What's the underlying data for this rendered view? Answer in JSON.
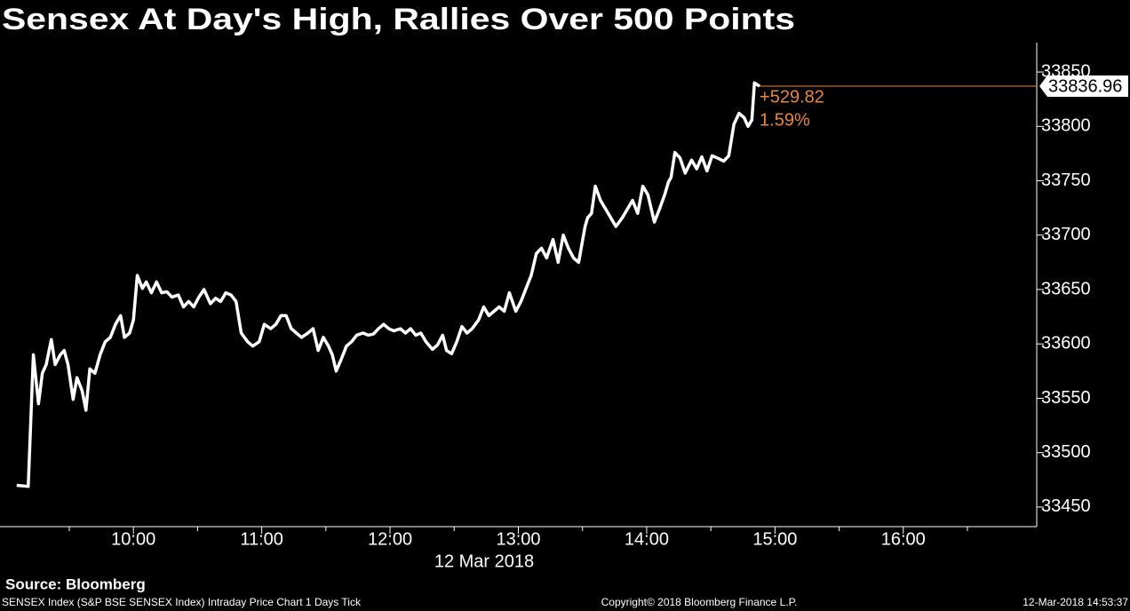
{
  "chart_data": {
    "type": "line",
    "title": "Sensex At Day's High, Rallies Over 500 Points",
    "xlabel": "12 Mar 2018",
    "source": "Source: Bloomberg",
    "footer_left": "SENSEX Index (S&P BSE SENSEX Index) Intraday Price Chart 1 Days  Tick",
    "footer_center": "Copyright© 2018 Bloomberg Finance L.P.",
    "footer_right": "12-Mar-2018 14:53:37",
    "change": "+529.82",
    "change_pct": "1.59%",
    "color": "#ffffff",
    "last_line_color": "#e8873a",
    "x": [
      9.09,
      9.18,
      9.22,
      9.26,
      9.29,
      9.32,
      9.36,
      9.39,
      9.43,
      9.46,
      9.49,
      9.53,
      9.56,
      9.6,
      9.63,
      9.66,
      9.7,
      9.74,
      9.78,
      9.82,
      9.86,
      9.9,
      9.93,
      9.97,
      10.0,
      10.03,
      10.07,
      10.1,
      10.14,
      10.18,
      10.22,
      10.26,
      10.3,
      10.35,
      10.39,
      10.43,
      10.47,
      10.51,
      10.55,
      10.6,
      10.64,
      10.68,
      10.72,
      10.76,
      10.8,
      10.84,
      10.89,
      10.93,
      10.98,
      11.02,
      11.07,
      11.11,
      11.15,
      11.19,
      11.23,
      11.27,
      11.31,
      11.36,
      11.4,
      11.44,
      11.48,
      11.52,
      11.55,
      11.58,
      11.62,
      11.66,
      11.7,
      11.74,
      11.79,
      11.83,
      11.87,
      11.91,
      11.95,
      11.99,
      12.03,
      12.08,
      12.12,
      12.16,
      12.2,
      12.24,
      12.28,
      12.33,
      12.37,
      12.41,
      12.44,
      12.48,
      12.52,
      12.56,
      12.6,
      12.64,
      12.69,
      12.73,
      12.77,
      12.81,
      12.85,
      12.89,
      12.93,
      12.98,
      13.02,
      13.06,
      13.1,
      13.14,
      13.18,
      13.22,
      13.27,
      13.31,
      13.35,
      13.39,
      13.43,
      13.47,
      13.52,
      13.54,
      13.57,
      13.6,
      13.64,
      13.68,
      13.72,
      13.76,
      13.81,
      13.85,
      13.89,
      13.93,
      13.97,
      14.01,
      14.06,
      14.1,
      14.14,
      14.17,
      14.19,
      14.22,
      14.26,
      14.3,
      14.35,
      14.39,
      14.43,
      14.47,
      14.51,
      14.55,
      14.6,
      14.64,
      14.68,
      14.72,
      14.76,
      14.79,
      14.82,
      14.84,
      14.88
    ],
    "values": [
      33470,
      33469,
      33590,
      33545,
      33573,
      33581,
      33604,
      33581,
      33590,
      33594,
      33581,
      33549,
      33569,
      33557,
      33539,
      33577,
      33573,
      33590,
      33602,
      33606,
      33618,
      33626,
      33606,
      33610,
      33622,
      33663,
      33651,
      33657,
      33647,
      33657,
      33647,
      33648,
      33643,
      33645,
      33634,
      33639,
      33634,
      33643,
      33650,
      33637,
      33642,
      33639,
      33647,
      33645,
      33639,
      33610,
      33602,
      33598,
      33602,
      33618,
      33614,
      33618,
      33626,
      33626,
      33614,
      33610,
      33606,
      33610,
      33614,
      33594,
      33606,
      33598,
      33590,
      33575,
      33586,
      33598,
      33602,
      33608,
      33610,
      33608,
      33609,
      33614,
      33618,
      33614,
      33612,
      33614,
      33610,
      33614,
      33608,
      33610,
      33602,
      33595,
      33599,
      33608,
      33594,
      33591,
      33602,
      33616,
      33610,
      33614,
      33622,
      33634,
      33626,
      33630,
      33634,
      33630,
      33647,
      33630,
      33639,
      33651,
      33663,
      33683,
      33688,
      33679,
      33696,
      33675,
      33700,
      33688,
      33679,
      33675,
      33708,
      33716,
      33720,
      33745,
      33732,
      33724,
      33716,
      33708,
      33716,
      33724,
      33732,
      33720,
      33745,
      33737,
      33712,
      33724,
      33737,
      33749,
      33753,
      33776,
      33771,
      33757,
      33769,
      33761,
      33772,
      33759,
      33773,
      33771,
      33768,
      33773,
      33802,
      33812,
      33808,
      33800,
      33806,
      33840,
      33836.96
    ],
    "xlim": [
      8.96,
      17.04
    ],
    "xticks": [
      {
        "value": 10,
        "label": "10:00"
      },
      {
        "value": 11,
        "label": "11:00"
      },
      {
        "value": 12,
        "label": "12:00"
      },
      {
        "value": 13,
        "label": "13:00"
      },
      {
        "value": 14,
        "label": "14:00"
      },
      {
        "value": 15,
        "label": "15:00"
      },
      {
        "value": 16,
        "label": "16:00"
      }
    ],
    "xminorticks": [
      9.5,
      10.5,
      11.5,
      12.5,
      13.5,
      14.5,
      15.5,
      16.5
    ],
    "ylim": [
      33432,
      33877
    ],
    "yticks": [
      33450,
      33500,
      33550,
      33600,
      33650,
      33700,
      33750,
      33800,
      33850
    ],
    "grid": false
  }
}
